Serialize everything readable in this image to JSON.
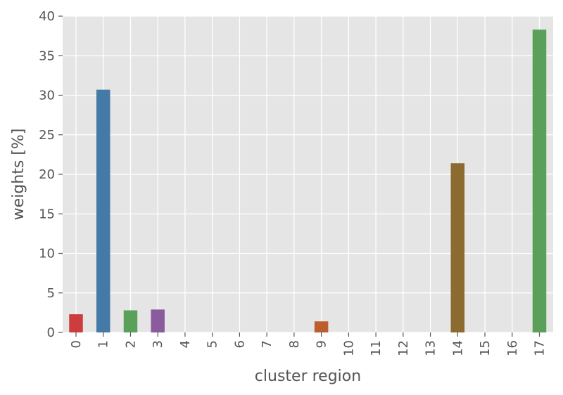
{
  "chart_data": {
    "type": "bar",
    "title": "",
    "xlabel": "cluster region",
    "ylabel": "weights [%]",
    "categories": [
      "0",
      "1",
      "2",
      "3",
      "4",
      "5",
      "6",
      "7",
      "8",
      "9",
      "10",
      "11",
      "12",
      "13",
      "14",
      "15",
      "16",
      "17"
    ],
    "values": [
      2.3,
      30.7,
      2.8,
      2.9,
      0,
      0,
      0,
      0,
      0,
      1.4,
      0,
      0,
      0,
      0,
      21.4,
      0,
      0,
      38.3
    ],
    "bar_colors": [
      "#cb3e3d",
      "#467aa6",
      "#5aa05a",
      "#8c5b9d",
      "#f28e2b",
      "#eeee55",
      "#bd6d2d",
      "#e88fbd",
      "#9b9b9b",
      "#bd5d2d",
      "#cb3e3d",
      "#467aa6",
      "#5aa05a",
      "#8c5b9d",
      "#8b6b2f",
      "#eeee55",
      "#bd6d2d",
      "#5aa05a"
    ],
    "ylim": [
      0,
      40
    ],
    "yticks": [
      0,
      5,
      10,
      15,
      20,
      25,
      30,
      35,
      40
    ],
    "grid": true,
    "background": "#e5e5e5",
    "grid_color": "#ffffff",
    "text_color": "#555555",
    "legend": "none"
  }
}
